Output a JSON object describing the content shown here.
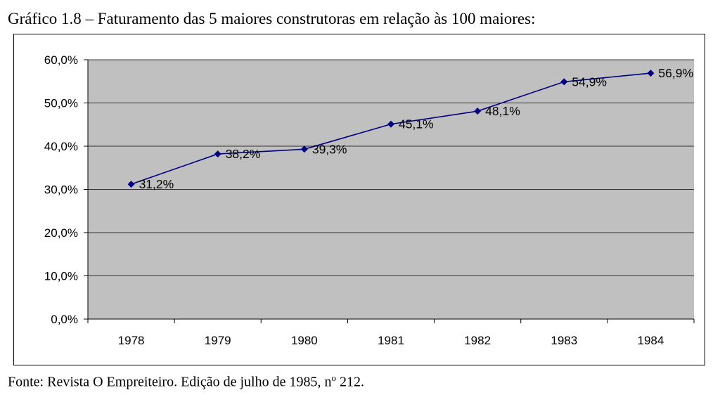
{
  "title": "Gráfico 1.8 – Faturamento das 5 maiores construtoras em relação às 100 maiores:",
  "source": {
    "prefix": "Fonte: Revista O Empreiteiro. Edição de julho de 1985, n",
    "superscript": "o",
    "suffix": " 212."
  },
  "chart_data": {
    "type": "line",
    "categories": [
      "1978",
      "1979",
      "1980",
      "1981",
      "1982",
      "1983",
      "1984"
    ],
    "series": [
      {
        "values": [
          31.2,
          38.2,
          39.3,
          45.1,
          48.1,
          54.9,
          56.9
        ]
      }
    ],
    "data_labels": [
      "31,2%",
      "38,2%",
      "39,3%",
      "45,1%",
      "48,1%",
      "54,9%",
      "56,9%"
    ],
    "y_ticks": [
      "0,0%",
      "10,0%",
      "20,0%",
      "30,0%",
      "40,0%",
      "50,0%",
      "60,0%"
    ],
    "ylim": [
      0,
      60
    ],
    "grid": true,
    "colors": {
      "line": "#000080",
      "plot_background": "#c0c0c0",
      "gridline": "#000000"
    }
  }
}
